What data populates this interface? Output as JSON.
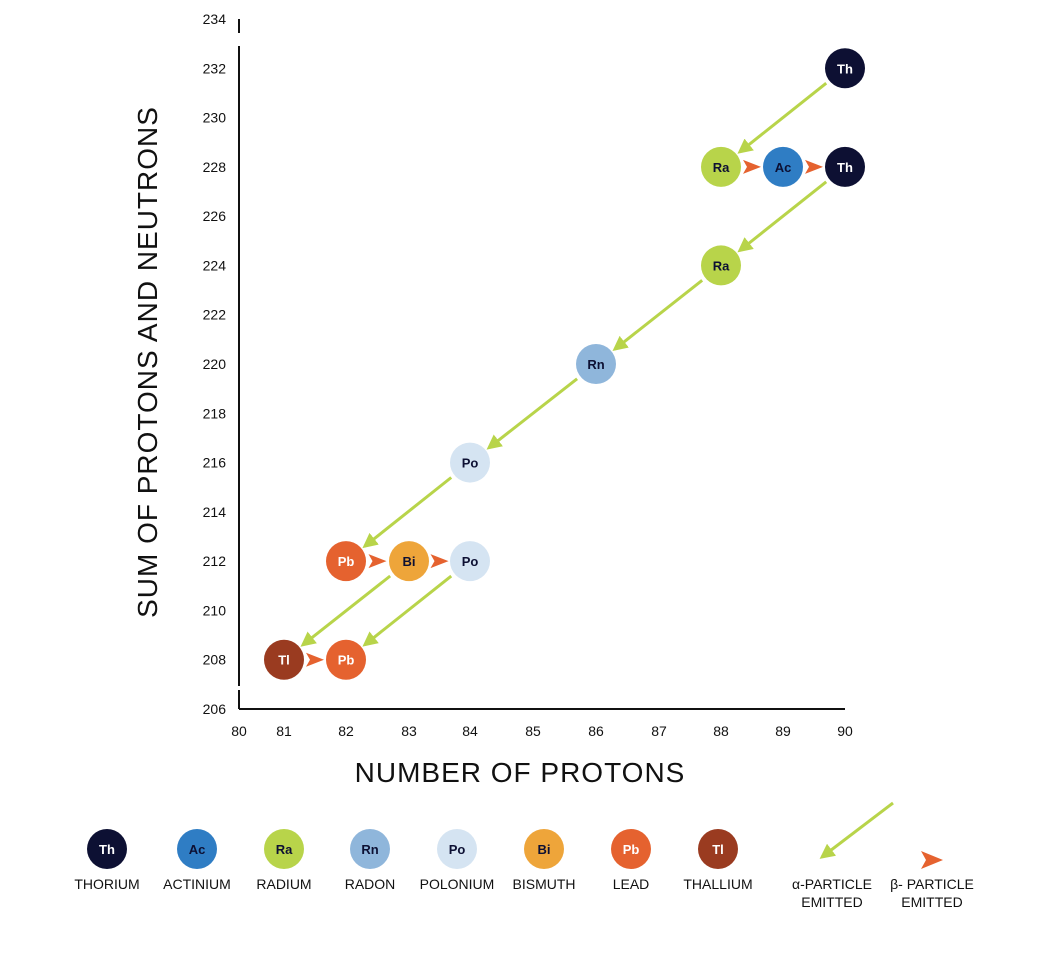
{
  "chart_data": {
    "type": "scatter",
    "title": "",
    "xlabel": "NUMBER OF PROTONS",
    "ylabel": "SUM OF PROTONS AND NEUTRONS",
    "x_ticks": [
      80,
      81,
      82,
      83,
      84,
      85,
      86,
      87,
      88,
      89,
      90
    ],
    "y_ticks": [
      206,
      208,
      210,
      212,
      214,
      216,
      218,
      220,
      222,
      224,
      226,
      228,
      230,
      232,
      234
    ],
    "xlim": [
      80,
      90
    ],
    "ylim": [
      206,
      234
    ],
    "grid": false,
    "legend_position": "bottom",
    "elements": {
      "Th": {
        "name": "THORIUM",
        "color": "#0d1033",
        "text_color": "#ffffff"
      },
      "Ac": {
        "name": "ACTINIUM",
        "color": "#2f7dc4",
        "text_color": "#0d1033"
      },
      "Ra": {
        "name": "RADIUM",
        "color": "#b8d44a",
        "text_color": "#0d1033"
      },
      "Rn": {
        "name": "RADON",
        "color": "#8fb6db",
        "text_color": "#0d1033"
      },
      "Po": {
        "name": "POLONIUM",
        "color": "#d5e4f2",
        "text_color": "#0d1033"
      },
      "Bi": {
        "name": "BISMUTH",
        "color": "#eea53a",
        "text_color": "#0d1033"
      },
      "Pb": {
        "name": "LEAD",
        "color": "#e5622f",
        "text_color": "#ffffff"
      },
      "Tl": {
        "name": "THALLIUM",
        "color": "#9a3b20",
        "text_color": "#ffffff"
      }
    },
    "nuclides": [
      {
        "symbol": "Th",
        "protons": 90,
        "mass": 232
      },
      {
        "symbol": "Ra",
        "protons": 88,
        "mass": 228
      },
      {
        "symbol": "Ac",
        "protons": 89,
        "mass": 228
      },
      {
        "symbol": "Th",
        "protons": 90,
        "mass": 228
      },
      {
        "symbol": "Ra",
        "protons": 88,
        "mass": 224
      },
      {
        "symbol": "Rn",
        "protons": 86,
        "mass": 220
      },
      {
        "symbol": "Po",
        "protons": 84,
        "mass": 216
      },
      {
        "symbol": "Pb",
        "protons": 82,
        "mass": 212
      },
      {
        "symbol": "Bi",
        "protons": 83,
        "mass": 212
      },
      {
        "symbol": "Po",
        "protons": 84,
        "mass": 212
      },
      {
        "symbol": "Tl",
        "protons": 81,
        "mass": 208
      },
      {
        "symbol": "Pb",
        "protons": 82,
        "mass": 208
      }
    ],
    "alpha_decays": [
      {
        "from": [
          90,
          232
        ],
        "to": [
          88,
          228
        ]
      },
      {
        "from": [
          90,
          228
        ],
        "to": [
          88,
          224
        ]
      },
      {
        "from": [
          88,
          224
        ],
        "to": [
          86,
          220
        ]
      },
      {
        "from": [
          86,
          220
        ],
        "to": [
          84,
          216
        ]
      },
      {
        "from": [
          84,
          216
        ],
        "to": [
          82,
          212
        ]
      },
      {
        "from": [
          83,
          212
        ],
        "to": [
          81,
          208
        ]
      },
      {
        "from": [
          84,
          212
        ],
        "to": [
          82,
          208
        ]
      }
    ],
    "beta_decays": [
      {
        "from": [
          88,
          228
        ],
        "to": [
          89,
          228
        ]
      },
      {
        "from": [
          89,
          228
        ],
        "to": [
          90,
          228
        ]
      },
      {
        "from": [
          82,
          212
        ],
        "to": [
          83,
          212
        ]
      },
      {
        "from": [
          83,
          212
        ],
        "to": [
          84,
          212
        ]
      },
      {
        "from": [
          81,
          208
        ],
        "to": [
          82,
          208
        ]
      }
    ],
    "alpha_color": "#b8d44a",
    "beta_color": "#e5622f",
    "legend": {
      "elements": [
        "Th",
        "Ac",
        "Ra",
        "Rn",
        "Po",
        "Bi",
        "Pb",
        "Tl"
      ],
      "alpha_label": [
        "α-PARTICLE",
        "EMITTED"
      ],
      "beta_label": [
        "β- PARTICLE",
        "EMITTED"
      ]
    }
  }
}
